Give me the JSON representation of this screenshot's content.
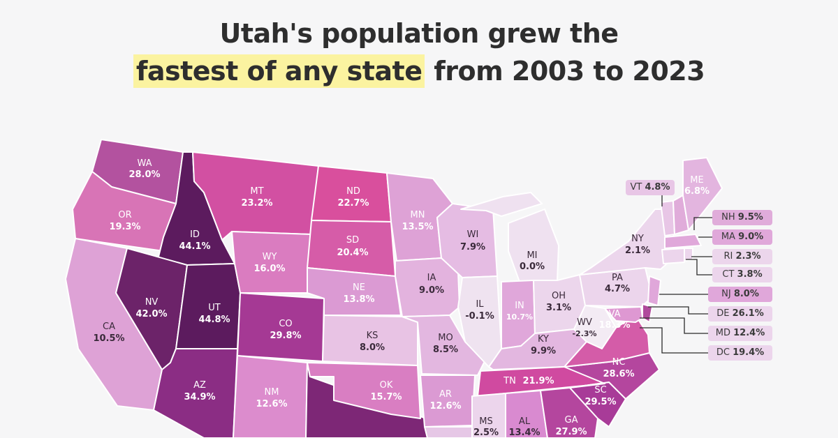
{
  "title_line1": "Utah's population grew the",
  "title_highlight": "fastest of any state",
  "title_line2_rest": " from 2003 to 2023",
  "colors": {
    "highlight": "#fbf3a0",
    "low": "#f1e6f1",
    "high": "#5e1a5e"
  },
  "states": {
    "WA": {
      "abbr": "WA",
      "value": "28.0%"
    },
    "OR": {
      "abbr": "OR",
      "value": "19.3%"
    },
    "CA": {
      "abbr": "CA",
      "value": "10.5%"
    },
    "ID": {
      "abbr": "ID",
      "value": "44.1%"
    },
    "NV": {
      "abbr": "NV",
      "value": "42.0%"
    },
    "UT": {
      "abbr": "UT",
      "value": "44.8%"
    },
    "AZ": {
      "abbr": "AZ",
      "value": "34.9%"
    },
    "MT": {
      "abbr": "MT",
      "value": "23.2%"
    },
    "WY": {
      "abbr": "WY",
      "value": "16.0%"
    },
    "CO": {
      "abbr": "CO",
      "value": "29.8%"
    },
    "NM": {
      "abbr": "NM",
      "value": "12.6%"
    },
    "ND": {
      "abbr": "ND",
      "value": "22.7%"
    },
    "SD": {
      "abbr": "SD",
      "value": "20.4%"
    },
    "NE": {
      "abbr": "NE",
      "value": "13.8%"
    },
    "KS": {
      "abbr": "KS",
      "value": "8.0%"
    },
    "OK": {
      "abbr": "OK",
      "value": "15.7%"
    },
    "MN": {
      "abbr": "MN",
      "value": "13.5%"
    },
    "IA": {
      "abbr": "IA",
      "value": "9.0%"
    },
    "MO": {
      "abbr": "MO",
      "value": "8.5%"
    },
    "AR": {
      "abbr": "AR",
      "value": "12.6%"
    },
    "WI": {
      "abbr": "WI",
      "value": "7.9%"
    },
    "IL": {
      "abbr": "IL",
      "value": "-0.1%"
    },
    "MI": {
      "abbr": "MI",
      "value": "0.0%"
    },
    "IN": {
      "abbr": "IN",
      "value": "10.7%"
    },
    "OH": {
      "abbr": "OH",
      "value": "3.1%"
    },
    "KY": {
      "abbr": "KY",
      "value": "9.9%"
    },
    "TN": {
      "abbr": "TN",
      "value": "21.9%"
    },
    "MS": {
      "abbr": "MS",
      "value": "2.5%"
    },
    "AL": {
      "abbr": "AL",
      "value": "13.4%"
    },
    "GA": {
      "abbr": "GA",
      "value": "27.9%"
    },
    "SC": {
      "abbr": "SC",
      "value": "29.5%"
    },
    "NC": {
      "abbr": "NC",
      "value": "28.6%"
    },
    "VA": {
      "abbr": "VA",
      "value": "18.3%"
    },
    "WV": {
      "abbr": "WV",
      "value": "-2.3%"
    },
    "PA": {
      "abbr": "PA",
      "value": "4.7%"
    },
    "NY": {
      "abbr": "NY",
      "value": "2.1%"
    },
    "ME": {
      "abbr": "ME",
      "value": "6.8%"
    },
    "VT": {
      "abbr": "VT",
      "value": "4.8%"
    },
    "NH": {
      "abbr": "NH",
      "value": "9.5%"
    },
    "MA": {
      "abbr": "MA",
      "value": "9.0%"
    },
    "RI": {
      "abbr": "RI",
      "value": "2.3%"
    },
    "CT": {
      "abbr": "CT",
      "value": "3.8%"
    },
    "NJ": {
      "abbr": "NJ",
      "value": "8.0%"
    },
    "DE": {
      "abbr": "DE",
      "value": "26.1%"
    },
    "MD": {
      "abbr": "MD",
      "value": "12.4%"
    },
    "DC": {
      "abbr": "DC",
      "value": "19.4%"
    }
  }
}
